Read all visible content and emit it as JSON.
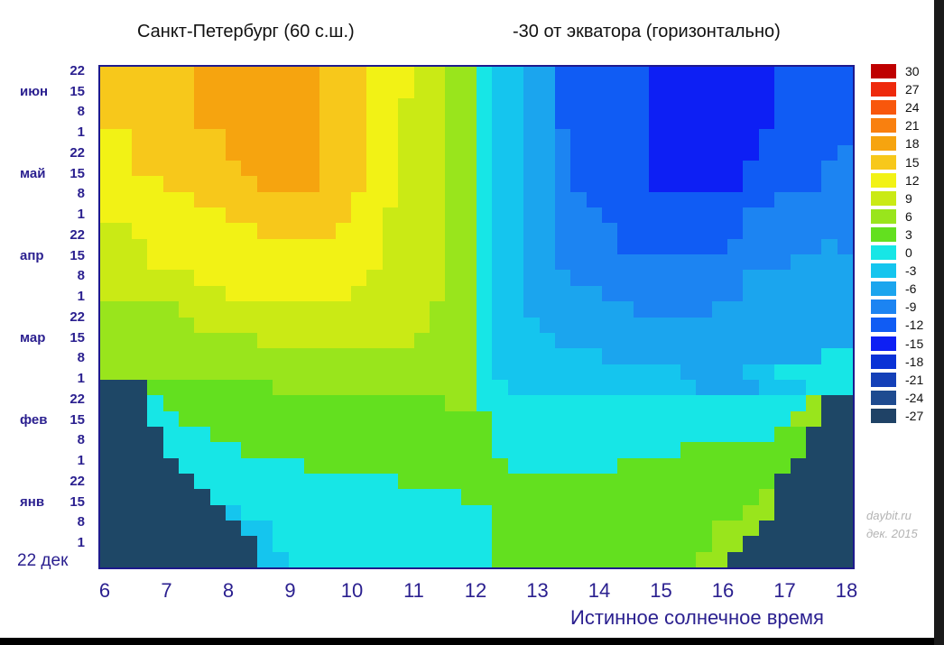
{
  "titles": {
    "left": "Санкт-Петербург (60 с.ш.)",
    "right": "-30 от экватора (горизонтально)"
  },
  "watermark": {
    "line1": "daybit.ru",
    "line2": "дек. 2015"
  },
  "chart_data": {
    "type": "heatmap",
    "xlabel": "Истинное солнечное время",
    "x_ticks": [
      "6",
      "7",
      "8",
      "9",
      "10",
      "11",
      "12",
      "13",
      "14",
      "15",
      "16",
      "17",
      "18"
    ],
    "x_range": [
      6,
      18
    ],
    "y_start_label": "22 дек",
    "y_day_ticks": [
      "1",
      "8",
      "15",
      "22",
      "1",
      "8",
      "15",
      "22",
      "1",
      "8",
      "15",
      "22",
      "1",
      "8",
      "15",
      "22",
      "1",
      "8",
      "15",
      "22",
      "1",
      "8",
      "15",
      "22"
    ],
    "y_month_labels": [
      {
        "label": "янв",
        "index": 2
      },
      {
        "label": "фев",
        "index": 6
      },
      {
        "label": "мар",
        "index": 10
      },
      {
        "label": "апр",
        "index": 14
      },
      {
        "label": "май",
        "index": 18
      },
      {
        "label": "июн",
        "index": 22
      }
    ],
    "colorbar": {
      "values": [
        30,
        27,
        24,
        21,
        18,
        15,
        12,
        9,
        6,
        3,
        0,
        -3,
        -6,
        -9,
        -12,
        -15,
        -18,
        -21,
        -24,
        -27
      ],
      "colors": [
        "#bf0000",
        "#ee2a0c",
        "#f8570c",
        "#f9800f",
        "#f6a40f",
        "#f7c81b",
        "#f2f215",
        "#caea15",
        "#99e51c",
        "#63e01f",
        "#17e6e6",
        "#15c5ee",
        "#1ba5ee",
        "#1c84f2",
        "#105cf4",
        "#0d1ff4",
        "#0a32d6",
        "#1440b8",
        "#1e4b90",
        "#1f4266"
      ]
    },
    "cols": 48,
    "rows": 32,
    "row_order": "top_to_bottom",
    "no_data_color": "#1e4766",
    "no_data_code": ".",
    "color_codes": {
      "A": "#f7c81b",
      "B": "#f6a40f",
      "C": "#f2f215",
      "D": "#caea15",
      "E": "#99e51c",
      "F": "#63e01f",
      "G": "#17e6e6",
      "H": "#15c5ee",
      "I": "#1ba5ee",
      "J": "#1c84f2",
      "K": "#105cf4",
      "L": "#0d1ff4"
    },
    "grid": [
      "AAAAAABBBBBBBBAAACCCDDEEGHHIIKKKKKKLLLLLLLLKKKKK",
      "AAAAAABBBBBBBBAAACCCDDEEGHHIIKKKKKKLLLLLLLLKKKKK",
      "AAAAAABBBBBBBBAAACCDDDEEGHHIIKKKKKKLLLLLLLLKKKKK",
      "AAAAAABBBBBBBBAAACCDDDEEGHHIIKKKKKKLLLLLLLLKKKKK",
      "CCAAAAAABBBBBBAAACCDDDEEGHHIIJKKKKKLLLLLLLKKKKKK",
      "CCAAAAAABBBBBBAAACCDDDEEGHHIIJKKKKKLLLLLLLKKKKKJ",
      "CCAAAAAAABBBBBAAACCDDDEEGHHIIJKKKKKLLLLLLKKKKKJJ",
      "CCCCAAAAAABBBBAAACCDDDEEGHHIIJKKKKKLLLLLLKKKKKJJ",
      "CCCCCCAAAAAAAAAACCCDDDEEGHHIIJJKKKKKKKKKKKKJJJJJ",
      "CCCCCCCCAAAAAAAACCDDDDEEGHHIIJJJKKKKKKKKKJJJJJJJ",
      "DDCCCCCCCCAAAAACCCDDDDEEGHHIIJJJJKKKKKKKKJJJJJJJ",
      "DDDCCCCCCCCCCCCCCCDDDDEEGHHIIJJJJKKKKKKKJJJJJJIJ",
      "DDDCCCCCCCCCCCCCCCDDDDEEGHHIIJJJJJJJJJJJJJJJIIII",
      "DDDDDDCCCCCCCCCCCDDDDDEEGHHIIIJJJJJJJJJJJIIIIIII",
      "DDDDDDDDCCCCCCCCDDDDDDEEGHHIIIIIJJJJJJJJJIIIIIII",
      "EEEEEDDDDDDDDDDDDDDDDEEEGHHIIIIIIIJJJJJIIIIIIIII",
      "EEEEEEDDDDDDDDDDDDDDDEEEGHHHIIIIIIIIIIIIIIIIIIII",
      "EEEEEEEEEEDDDDDDDDDDEEEEGHHHHIIIIIIIIIIIIIIIIIII",
      "EEEEEEEEEEEEEEEEEEEEEEEEGHHHHHHHIIIIIIIIIIIIIIGG",
      "EEEEEEEEEEEEEEEEEEEEEEEEGHHHHHHHHHHHHIIIIHHGGGGG",
      "...FFFFFFFFEEEEEEEEEEEEEGGHHHHHHHHHHHHIIIIHHHGGG",
      "...GFFFFFFFFFFFFFFFFFFEEGGGGGGGGGGGGGGGGGGGGGE..",
      "...GGFFFFFFFFFFFFFFFFFFFFGGGGGGGGGGGGGGGGGGGEE..",
      "....GGGFFFFFFFFFFFFFFFFFFGGGGGGGGGGGGGGGGGGFF...",
      "....GGGGGFFFFFFFFFFFFFFFFGGGGGGGGGGGGFFFFFFFF...",
      ".....GGGGGGGGFFFFFFFFFFFFFGGGGGGGFFFFFFFFFFF....",
      "......GGGGGGGGGGGGGFFFFFFFFFFFFFFFFFFFFFFFF.....",
      ".......GGGGGGGGGGGGGGGGFFFFFFFFFFFFFFFFFFFE.....",
      "........HGGGGGGGGGGGGGGGGFFFFFFFFFFFFFFFFEE.....",
      ".........HHGGGGGGGGGGGGGGFFFFFFFFFFFFFFEEE......",
      "..........HGGGGGGGGGGGGGGFFFFFFFFFFFFFFEE.......",
      "..........HHGGGGGGGGGGGGGFFFFFFFFFFFFFEE........"
    ]
  }
}
